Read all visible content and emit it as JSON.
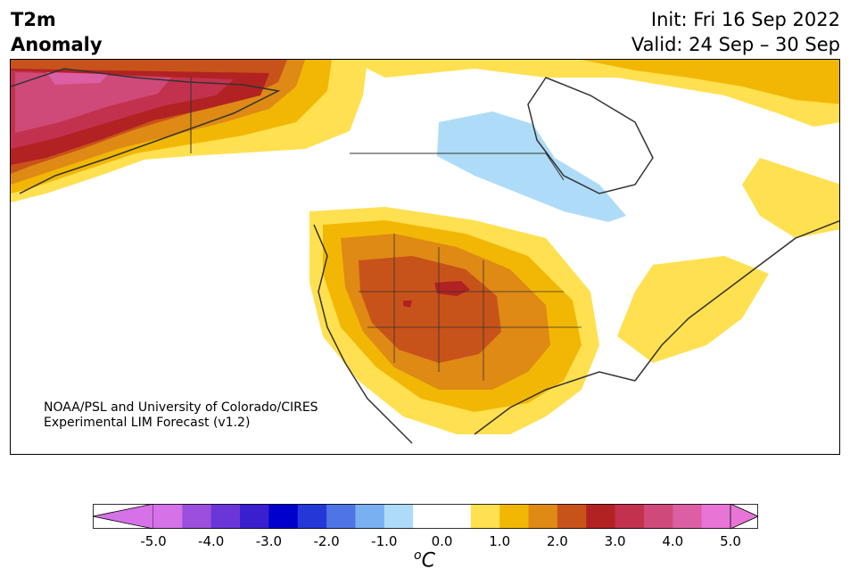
{
  "header": {
    "title_line1": "T2m",
    "title_line2": "Anomaly",
    "init": "Init: Fri 16 Sep 2022",
    "valid": "Valid: 24 Sep – 30 Sep"
  },
  "credit": {
    "line1": "NOAA/PSL and University of Colorado/CIRES",
    "line2": "Experimental LIM Forecast (v1.2)"
  },
  "colorbar": {
    "unit_sup": "o",
    "unit": "C",
    "ticks": [
      "-5.0",
      "-4.0",
      "-3.0",
      "-2.0",
      "-1.0",
      "0.0",
      "1.0",
      "2.0",
      "3.0",
      "4.0",
      "5.0"
    ],
    "colors": [
      "#d572e8",
      "#9b4fdc",
      "#6a36d8",
      "#3a1fcf",
      "#0000cc",
      "#2438d8",
      "#4f74e6",
      "#78b0f2",
      "#aedcf8",
      "#ffffff",
      "#ffffff",
      "#ffe050",
      "#f2b705",
      "#de8a14",
      "#c8531a",
      "#b22222",
      "#c2324e",
      "#cf4a78",
      "#dc5fa4",
      "#e875d6"
    ],
    "under_color": "#d572e8",
    "over_color": "#e875d6"
  },
  "map": {
    "region": "North America",
    "variable": "2m temperature anomaly",
    "features": [
      {
        "name": "Alaska",
        "anomaly_range": "3.0 to 4.5",
        "color": "#c2324e"
      },
      {
        "name": "Western US (Colorado/Utah)",
        "anomaly_range": "2.0 to 3.0",
        "color": "#c8531a"
      },
      {
        "name": "Central Canada (Manitoba/Hudson Bay)",
        "anomaly_range": "-1.0 to -0.5",
        "color": "#aedcf8"
      },
      {
        "name": "Eastern Canada / Labrador",
        "anomaly_range": "0.5 to 1.5",
        "color": "#ffe050"
      }
    ]
  }
}
